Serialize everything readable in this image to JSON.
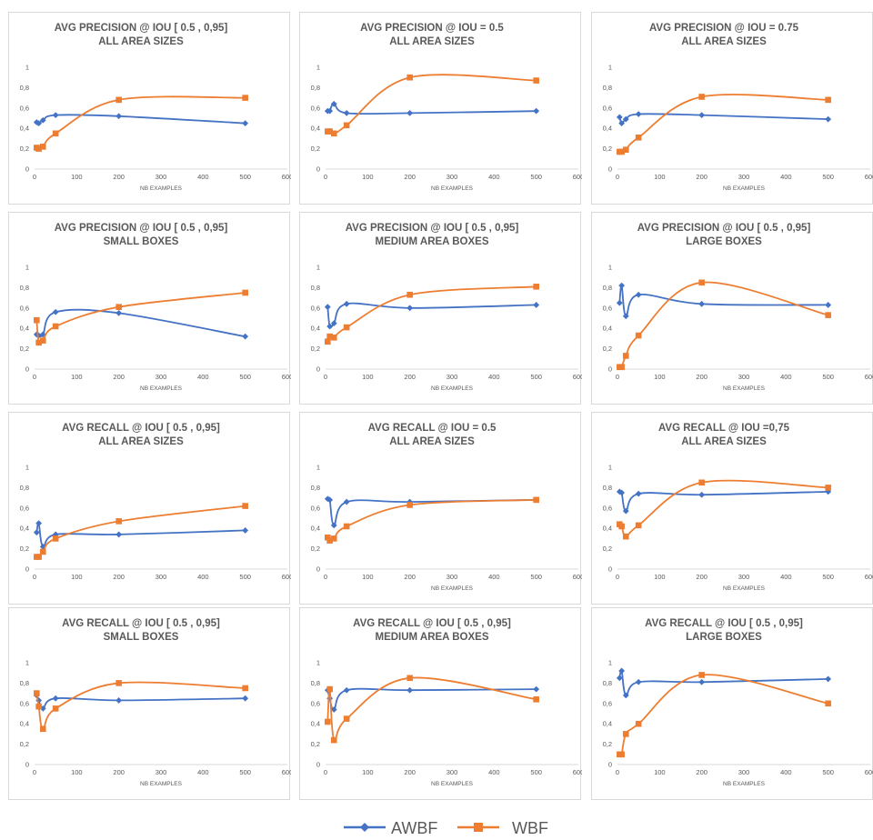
{
  "colors": {
    "awbf": "#4472c4",
    "wbf": "#ed7d31",
    "axis": "#d9d9d9",
    "text": "#595959"
  },
  "legend": {
    "items": [
      "AWBF",
      "WBF"
    ],
    "placement": "bottom-center"
  },
  "chart_data": [
    {
      "type": "line",
      "title": [
        "AVG PRECISION @ IOU [ 0.5 , 0,95]",
        "ALL AREA SIZES"
      ],
      "xlabel": "NB EXAMPLES",
      "ylabel": "",
      "xlim": [
        0,
        600
      ],
      "ylim": [
        0,
        1
      ],
      "xticks": [
        "0",
        "100",
        "200",
        "300",
        "400",
        "500",
        "600"
      ],
      "yticks": [
        "0",
        "0,2",
        "0,4",
        "0,6",
        "0,8",
        "1"
      ],
      "grid": false,
      "x": [
        5,
        10,
        20,
        50,
        200,
        500
      ],
      "series": [
        {
          "name": "AWBF",
          "values": [
            0.46,
            0.45,
            0.48,
            0.53,
            0.52,
            0.45
          ]
        },
        {
          "name": "WBF",
          "values": [
            0.21,
            0.2,
            0.22,
            0.35,
            0.68,
            0.7
          ]
        }
      ]
    },
    {
      "type": "line",
      "title": [
        "AVG PRECISION @ IOU = 0.5",
        "ALL AREA SIZES"
      ],
      "xlabel": "NB EXAMPLES",
      "ylabel": "",
      "xlim": [
        0,
        600
      ],
      "ylim": [
        0,
        1
      ],
      "xticks": [
        "0",
        "100",
        "200",
        "300",
        "400",
        "500",
        "600"
      ],
      "yticks": [
        "0",
        "0,2",
        "0,4",
        "0,6",
        "0,8",
        "1"
      ],
      "grid": false,
      "x": [
        5,
        10,
        20,
        50,
        200,
        500
      ],
      "series": [
        {
          "name": "AWBF",
          "values": [
            0.57,
            0.57,
            0.64,
            0.55,
            0.55,
            0.57
          ]
        },
        {
          "name": "WBF",
          "values": [
            0.37,
            0.37,
            0.35,
            0.43,
            0.9,
            0.87
          ]
        }
      ]
    },
    {
      "type": "line",
      "title": [
        "AVG PRECISION @ IOU = 0.75",
        "ALL AREA SIZES"
      ],
      "xlabel": "NB EXAMPLES",
      "ylabel": "",
      "xlim": [
        0,
        600
      ],
      "ylim": [
        0,
        1
      ],
      "xticks": [
        "0",
        "100",
        "200",
        "300",
        "400",
        "500",
        "600"
      ],
      "yticks": [
        "0",
        "0,2",
        "0,4",
        "0,6",
        "0,8",
        "1"
      ],
      "grid": false,
      "x": [
        5,
        10,
        20,
        50,
        200,
        500
      ],
      "series": [
        {
          "name": "AWBF",
          "values": [
            0.51,
            0.45,
            0.49,
            0.54,
            0.53,
            0.49
          ]
        },
        {
          "name": "WBF",
          "values": [
            0.17,
            0.17,
            0.19,
            0.31,
            0.71,
            0.68
          ]
        }
      ]
    },
    {
      "type": "line",
      "title": [
        "AVG PRECISION @ IOU [ 0.5 , 0,95]",
        "SMALL BOXES"
      ],
      "xlabel": "NB EXAMPLES",
      "ylabel": "",
      "xlim": [
        0,
        600
      ],
      "ylim": [
        0,
        1
      ],
      "xticks": [
        "0",
        "100",
        "200",
        "300",
        "400",
        "500",
        "600"
      ],
      "yticks": [
        "0",
        "0,2",
        "0,4",
        "0,6",
        "0,8",
        "1"
      ],
      "grid": false,
      "x": [
        5,
        10,
        20,
        50,
        200,
        500
      ],
      "series": [
        {
          "name": "AWBF",
          "values": [
            0.34,
            0.33,
            0.34,
            0.56,
            0.55,
            0.32
          ]
        },
        {
          "name": "WBF",
          "values": [
            0.48,
            0.26,
            0.28,
            0.42,
            0.61,
            0.75
          ]
        }
      ]
    },
    {
      "type": "line",
      "title": [
        "AVG PRECISION @ IOU [ 0.5 , 0,95]",
        "MEDIUM AREA BOXES"
      ],
      "xlabel": "NB EXAMPLES",
      "ylabel": "",
      "xlim": [
        0,
        600
      ],
      "ylim": [
        0,
        1
      ],
      "xticks": [
        "0",
        "100",
        "200",
        "300",
        "400",
        "500",
        "600"
      ],
      "yticks": [
        "0",
        "0,2",
        "0,4",
        "0,6",
        "0,8",
        "1"
      ],
      "grid": false,
      "x": [
        5,
        10,
        20,
        50,
        200,
        500
      ],
      "series": [
        {
          "name": "AWBF",
          "values": [
            0.61,
            0.42,
            0.45,
            0.64,
            0.6,
            0.63
          ]
        },
        {
          "name": "WBF",
          "values": [
            0.27,
            0.32,
            0.31,
            0.41,
            0.73,
            0.81
          ]
        }
      ]
    },
    {
      "type": "line",
      "title": [
        "AVG PRECISION @ IOU [ 0.5 , 0,95]",
        "LARGE BOXES"
      ],
      "xlabel": "NB EXAMPLES",
      "ylabel": "",
      "xlim": [
        0,
        600
      ],
      "ylim": [
        0,
        1
      ],
      "xticks": [
        "0",
        "100",
        "200",
        "300",
        "400",
        "500",
        "600"
      ],
      "yticks": [
        "0",
        "0,2",
        "0,4",
        "0,6",
        "0,8",
        "1"
      ],
      "grid": false,
      "x": [
        5,
        10,
        20,
        50,
        200,
        500
      ],
      "series": [
        {
          "name": "AWBF",
          "values": [
            0.65,
            0.82,
            0.52,
            0.73,
            0.64,
            0.63
          ]
        },
        {
          "name": "WBF",
          "values": [
            0.02,
            0.02,
            0.13,
            0.33,
            0.85,
            0.53
          ]
        }
      ]
    },
    {
      "type": "line",
      "title": [
        "AVG RECALL @ IOU [ 0.5 , 0,95]",
        "ALL AREA SIZES"
      ],
      "xlabel": "",
      "ylabel": "",
      "xlim": [
        0,
        600
      ],
      "ylim": [
        0,
        1
      ],
      "xticks": [
        "0",
        "100",
        "200",
        "300",
        "400",
        "500",
        "600"
      ],
      "yticks": [
        "0",
        "0,2",
        "0,4",
        "0,6",
        "0,8",
        "1"
      ],
      "grid": false,
      "x": [
        5,
        10,
        20,
        50,
        200,
        500
      ],
      "series": [
        {
          "name": "AWBF",
          "values": [
            0.36,
            0.45,
            0.22,
            0.34,
            0.34,
            0.38
          ]
        },
        {
          "name": "WBF",
          "values": [
            0.12,
            0.12,
            0.17,
            0.3,
            0.47,
            0.62
          ]
        }
      ]
    },
    {
      "type": "line",
      "title": [
        "AVG RECALL @ IOU = 0.5",
        "ALL AREA SIZES"
      ],
      "xlabel": "NB EXAMPLES",
      "ylabel": "",
      "xlim": [
        0,
        600
      ],
      "ylim": [
        0,
        1
      ],
      "xticks": [
        "0",
        "100",
        "200",
        "300",
        "400",
        "500",
        "600"
      ],
      "yticks": [
        "0",
        "0,2",
        "0,4",
        "0,6",
        "0,8",
        "1"
      ],
      "grid": false,
      "x": [
        5,
        10,
        20,
        50,
        200,
        500
      ],
      "series": [
        {
          "name": "AWBF",
          "values": [
            0.69,
            0.68,
            0.43,
            0.66,
            0.66,
            0.68
          ]
        },
        {
          "name": "WBF",
          "values": [
            0.31,
            0.28,
            0.3,
            0.42,
            0.63,
            0.68
          ]
        }
      ]
    },
    {
      "type": "line",
      "title": [
        "AVG RECALL @ IOU =0,75",
        "ALL AREA SIZES"
      ],
      "xlabel": "NB EXAMPLES",
      "ylabel": "",
      "xlim": [
        0,
        600
      ],
      "ylim": [
        0,
        1
      ],
      "xticks": [
        "0",
        "100",
        "200",
        "300",
        "400",
        "500",
        "600"
      ],
      "yticks": [
        "0",
        "0,2",
        "0,4",
        "0,6",
        "0,8",
        "1"
      ],
      "grid": false,
      "x": [
        5,
        10,
        20,
        50,
        200,
        500
      ],
      "series": [
        {
          "name": "AWBF",
          "values": [
            0.76,
            0.75,
            0.57,
            0.74,
            0.73,
            0.76
          ]
        },
        {
          "name": "WBF",
          "values": [
            0.44,
            0.42,
            0.32,
            0.43,
            0.85,
            0.8
          ]
        }
      ]
    },
    {
      "type": "line",
      "title": [
        "AVG RECALL @ IOU [ 0.5 , 0,95]",
        "SMALL BOXES"
      ],
      "xlabel": "NB EXAMPLES",
      "ylabel": "",
      "xlim": [
        0,
        600
      ],
      "ylim": [
        0,
        1
      ],
      "xticks": [
        "0",
        "100",
        "200",
        "300",
        "400",
        "500",
        "600"
      ],
      "yticks": [
        "0",
        "0,2",
        "0,4",
        "0,6",
        "0,8",
        "1"
      ],
      "grid": false,
      "x": [
        5,
        10,
        20,
        50,
        200,
        500
      ],
      "series": [
        {
          "name": "AWBF",
          "values": [
            0.68,
            0.63,
            0.55,
            0.65,
            0.63,
            0.65
          ]
        },
        {
          "name": "WBF",
          "values": [
            0.7,
            0.57,
            0.35,
            0.55,
            0.8,
            0.75
          ]
        }
      ]
    },
    {
      "type": "line",
      "title": [
        "AVG RECALL @ IOU [ 0.5 , 0,95]",
        "MEDIUM AREA BOXES"
      ],
      "xlabel": "NB EXAMPLES",
      "ylabel": "",
      "xlim": [
        0,
        600
      ],
      "ylim": [
        0,
        1
      ],
      "xticks": [
        "0",
        "100",
        "200",
        "300",
        "400",
        "500",
        "600"
      ],
      "yticks": [
        "0",
        "0,2",
        "0,4",
        "0,6",
        "0,8",
        "1"
      ],
      "grid": false,
      "x": [
        5,
        10,
        20,
        50,
        200,
        500
      ],
      "series": [
        {
          "name": "AWBF",
          "values": [
            0.73,
            0.65,
            0.54,
            0.73,
            0.73,
            0.74
          ]
        },
        {
          "name": "WBF",
          "values": [
            0.42,
            0.74,
            0.24,
            0.45,
            0.85,
            0.64
          ]
        }
      ]
    },
    {
      "type": "line",
      "title": [
        "AVG RECALL @ IOU [ 0.5 , 0,95]",
        "LARGE BOXES"
      ],
      "xlabel": "NB EXAMPLES",
      "ylabel": "",
      "xlim": [
        0,
        600
      ],
      "ylim": [
        0,
        1
      ],
      "xticks": [
        "0",
        "100",
        "200",
        "300",
        "400",
        "500",
        "600"
      ],
      "yticks": [
        "0",
        "0,2",
        "0,4",
        "0,6",
        "0,8",
        "1"
      ],
      "grid": false,
      "x": [
        5,
        10,
        20,
        50,
        200,
        500
      ],
      "series": [
        {
          "name": "AWBF",
          "values": [
            0.85,
            0.92,
            0.68,
            0.81,
            0.81,
            0.84
          ]
        },
        {
          "name": "WBF",
          "values": [
            0.1,
            0.1,
            0.3,
            0.4,
            0.88,
            0.6
          ]
        }
      ]
    }
  ]
}
